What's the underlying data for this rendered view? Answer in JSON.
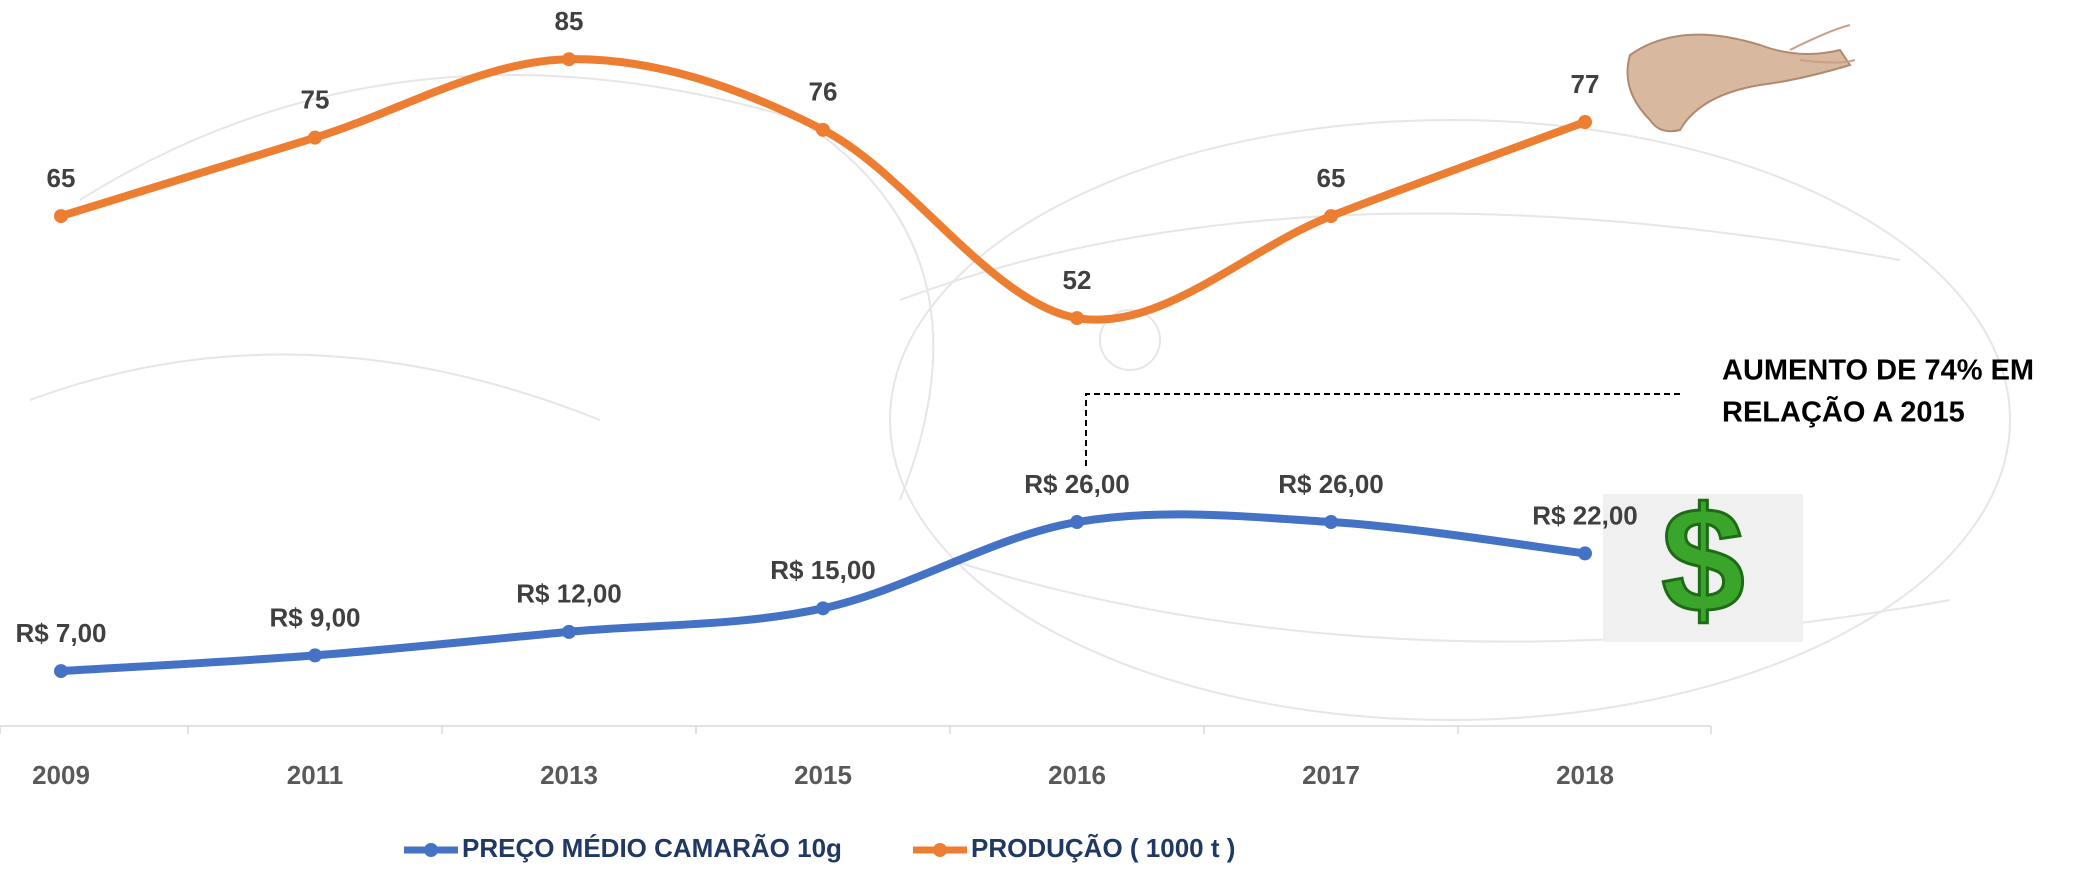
{
  "chart_data": {
    "type": "line",
    "categories": [
      "2009",
      "2011",
      "2013",
      "2015",
      "2016",
      "2017",
      "2018"
    ],
    "series": [
      {
        "name": "PREÇO MÉDIO CAMARÃO 10g",
        "color": "#4472c4",
        "values": [
          7,
          9,
          12,
          15,
          26,
          26,
          22
        ],
        "value_labels": [
          "R$ 7,00",
          "R$ 9,00",
          "R$ 12,00",
          "R$ 15,00",
          "R$ 26,00",
          "R$ 26,00",
          "R$ 22,00"
        ]
      },
      {
        "name": "PRODUÇÃO ( 1000 t )",
        "color": "#ed7d31",
        "values": [
          65,
          75,
          85,
          76,
          52,
          65,
          77
        ]
      }
    ],
    "ylim": [
      0,
      90
    ],
    "smooth": true,
    "legend": "bottom",
    "annotation": [
      "AUMENTO DE 74% EM",
      "RELAÇÃO A 2015"
    ]
  }
}
